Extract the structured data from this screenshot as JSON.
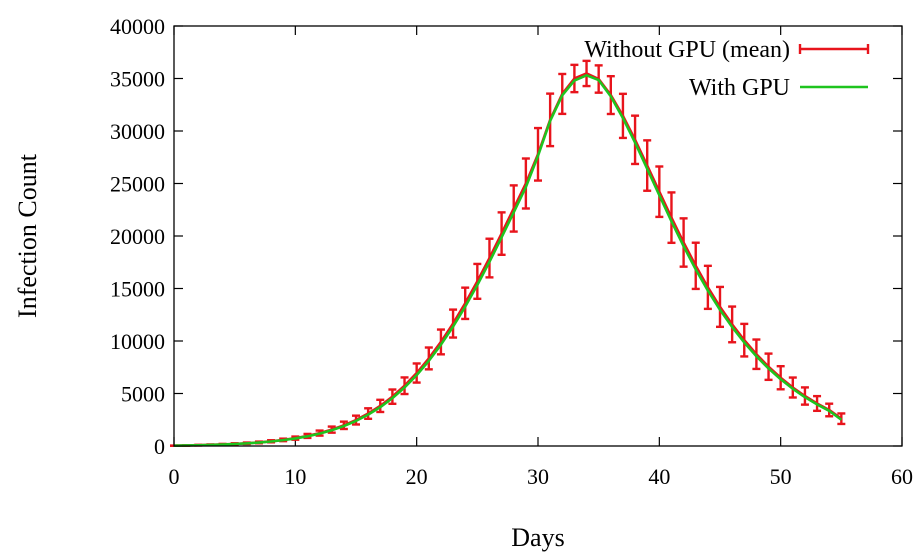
{
  "chart_data": {
    "type": "line",
    "title": "",
    "xlabel": "Days",
    "ylabel": "Infection Count",
    "xlim": [
      0,
      60
    ],
    "ylim": [
      0,
      40000
    ],
    "xticks": [
      0,
      10,
      20,
      30,
      40,
      50,
      60
    ],
    "yticks": [
      0,
      5000,
      10000,
      15000,
      20000,
      25000,
      30000,
      35000,
      40000
    ],
    "grid": false,
    "legend_position": "top-right",
    "series": [
      {
        "name": "Without GPU (mean)",
        "color": "#e8141c",
        "style": "line-with-errorbars",
        "x": [
          0,
          1,
          2,
          3,
          4,
          5,
          6,
          7,
          8,
          9,
          10,
          11,
          12,
          13,
          14,
          15,
          16,
          17,
          18,
          19,
          20,
          21,
          22,
          23,
          24,
          25,
          26,
          27,
          28,
          29,
          30,
          31,
          32,
          33,
          34,
          35,
          36,
          37,
          38,
          39,
          40,
          41,
          42,
          43,
          44,
          45,
          46,
          47,
          48,
          49,
          50,
          51,
          52,
          53,
          54,
          55
        ],
        "y": [
          30,
          50,
          80,
          110,
          150,
          200,
          260,
          340,
          450,
          580,
          750,
          960,
          1230,
          1560,
          1970,
          2470,
          3090,
          3820,
          4700,
          5740,
          6950,
          8340,
          9910,
          11660,
          13590,
          15680,
          17900,
          20230,
          22620,
          25000,
          27780,
          31060,
          33530,
          35000,
          35480,
          34950,
          33420,
          31440,
          29160,
          26710,
          24220,
          21750,
          19380,
          17160,
          15110,
          13250,
          11580,
          10080,
          8740,
          7550,
          6500,
          5570,
          4760,
          4050,
          3430,
          2600
        ],
        "error": [
          10,
          20,
          30,
          40,
          50,
          60,
          70,
          80,
          100,
          120,
          150,
          190,
          240,
          290,
          350,
          420,
          500,
          580,
          680,
          790,
          910,
          1040,
          1180,
          1330,
          1490,
          1660,
          1840,
          2020,
          2200,
          2380,
          2500,
          2500,
          1900,
          1300,
          1200,
          1300,
          1800,
          2100,
          2300,
          2400,
          2400,
          2400,
          2300,
          2200,
          2050,
          1900,
          1700,
          1550,
          1400,
          1250,
          1100,
          950,
          820,
          700,
          600,
          500
        ]
      },
      {
        "name": "With GPU",
        "color": "#1ec41e",
        "style": "line",
        "x": [
          0,
          1,
          2,
          3,
          4,
          5,
          6,
          7,
          8,
          9,
          10,
          11,
          12,
          13,
          14,
          15,
          16,
          17,
          18,
          19,
          20,
          21,
          22,
          23,
          24,
          25,
          26,
          27,
          28,
          29,
          30,
          31,
          32,
          33,
          34,
          35,
          36,
          37,
          38,
          39,
          40,
          41,
          42,
          43,
          44,
          45,
          46,
          47,
          48,
          49,
          50,
          51,
          52,
          53,
          54,
          55
        ],
        "y": [
          30,
          50,
          70,
          100,
          140,
          190,
          250,
          330,
          430,
          560,
          720,
          920,
          1180,
          1500,
          1900,
          2390,
          2990,
          3700,
          4560,
          5570,
          6750,
          8110,
          9650,
          11370,
          13270,
          15330,
          17540,
          19870,
          22260,
          24660,
          27630,
          30960,
          33400,
          34800,
          35300,
          34850,
          33300,
          31230,
          28900,
          26400,
          23880,
          21400,
          19030,
          16820,
          14800,
          12970,
          11330,
          9860,
          8550,
          7390,
          6360,
          5450,
          4650,
          3960,
          3350,
          2500
        ]
      }
    ]
  }
}
